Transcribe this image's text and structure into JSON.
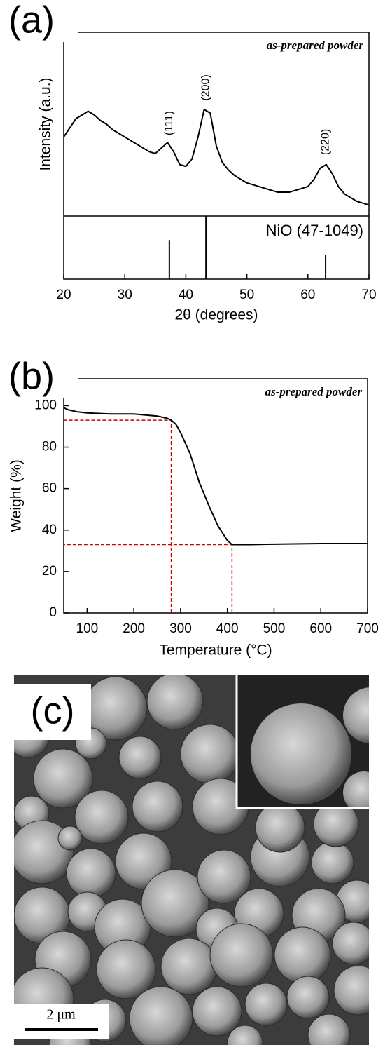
{
  "chart_data": [
    {
      "type": "line",
      "panel_label": "(a)",
      "annotation": "as-prepared powder",
      "x_label": "2θ (degrees)",
      "y_label": "Intensity (a.u.)",
      "color": "#000000",
      "x": [
        20,
        21,
        22,
        23,
        24,
        25,
        26,
        27,
        28,
        29,
        30,
        31,
        32,
        33,
        34,
        35,
        36,
        37,
        38,
        39,
        40,
        41,
        42,
        43,
        44,
        45,
        46,
        47,
        48,
        49,
        50,
        51,
        52,
        53,
        54,
        55,
        56,
        57,
        58,
        59,
        60,
        61,
        62,
        63,
        64,
        65,
        66,
        67,
        68,
        69,
        70
      ],
      "values": [
        43,
        48,
        53,
        55,
        57,
        55,
        52,
        50,
        47,
        45,
        43,
        41,
        39,
        37,
        35,
        34,
        37,
        40,
        35,
        28,
        27,
        31,
        43,
        58,
        56,
        38,
        29,
        25,
        22,
        20,
        18,
        17,
        16,
        15,
        14,
        13,
        13,
        13,
        14,
        15,
        16,
        20,
        26,
        28,
        23,
        16,
        12,
        10,
        8,
        7,
        6
      ],
      "xlim": [
        20,
        70
      ],
      "xticks": [
        20,
        30,
        40,
        50,
        60,
        70
      ],
      "ylim": [
        0,
        100
      ],
      "reference": {
        "label": "NiO (47-1049)",
        "x": [
          37.3,
          43.3,
          62.9
        ],
        "values": [
          62,
          100,
          38
        ],
        "peak_labels": [
          "(111)",
          "(200)",
          "(220)"
        ],
        "ylim": [
          0,
          100
        ]
      }
    },
    {
      "type": "line",
      "panel_label": "(b)",
      "annotation": "as-prepared powder",
      "x_label": "Temperature (°C)",
      "y_label": "Weight (%)",
      "color": "#000000",
      "x": [
        50,
        60,
        80,
        100,
        150,
        200,
        250,
        270,
        280,
        290,
        300,
        320,
        340,
        360,
        380,
        400,
        410,
        420,
        450,
        500,
        600,
        700
      ],
      "values": [
        99,
        98,
        97,
        96.5,
        96,
        96,
        95,
        94,
        93,
        91,
        87,
        77,
        63,
        52,
        42,
        35,
        33,
        33,
        33,
        33.2,
        33.5,
        33.5
      ],
      "xlim": [
        50,
        700
      ],
      "xticks": [
        100,
        200,
        300,
        400,
        500,
        600,
        700
      ],
      "ylim": [
        0,
        113
      ],
      "yticks": [
        0,
        20,
        40,
        60,
        80,
        100
      ],
      "guides": {
        "color": "#cc0000",
        "points": [
          {
            "x": 280,
            "y": 93
          },
          {
            "x": 410,
            "y": 33
          }
        ]
      }
    }
  ],
  "image": {
    "panel_label": "(c)",
    "scale_bar": "2 μm"
  }
}
